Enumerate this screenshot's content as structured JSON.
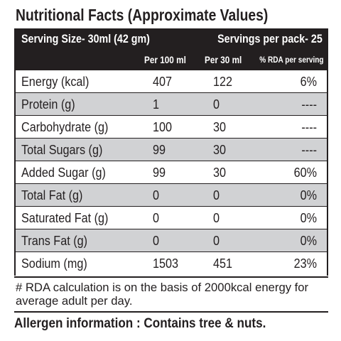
{
  "title": "Nutritional Facts (Approximate Values)",
  "serving_size": "Serving Size-  30ml (42 gm)",
  "servings_per_pack": "Servings per pack- 25",
  "columns": [
    "Per 100 ml",
    "Per 30 ml",
    "% RDA per serving"
  ],
  "rows": [
    [
      "Energy (kcal)",
      407,
      122,
      "6%"
    ],
    [
      "Protein (g)",
      1,
      0,
      "----"
    ],
    [
      "Carbohydrate (g)",
      100,
      30,
      "----"
    ],
    [
      "Total Sugars (g)",
      99,
      30,
      "----"
    ],
    [
      "Added Sugar (g)",
      99,
      30,
      "60%"
    ],
    [
      "Total Fat (g)",
      0,
      0,
      "0%"
    ],
    [
      "Saturated Fat (g)",
      0,
      0,
      "0%"
    ],
    [
      "Trans Fat (g)",
      0,
      0,
      "0%"
    ],
    [
      "Sodium (mg)",
      1503,
      451,
      "23%"
    ]
  ],
  "footnote": "# RDA calculation is on the basis of 2000kcal energy for average adult per day.",
  "allergen": "Allergen information : Contains tree & nuts."
}
